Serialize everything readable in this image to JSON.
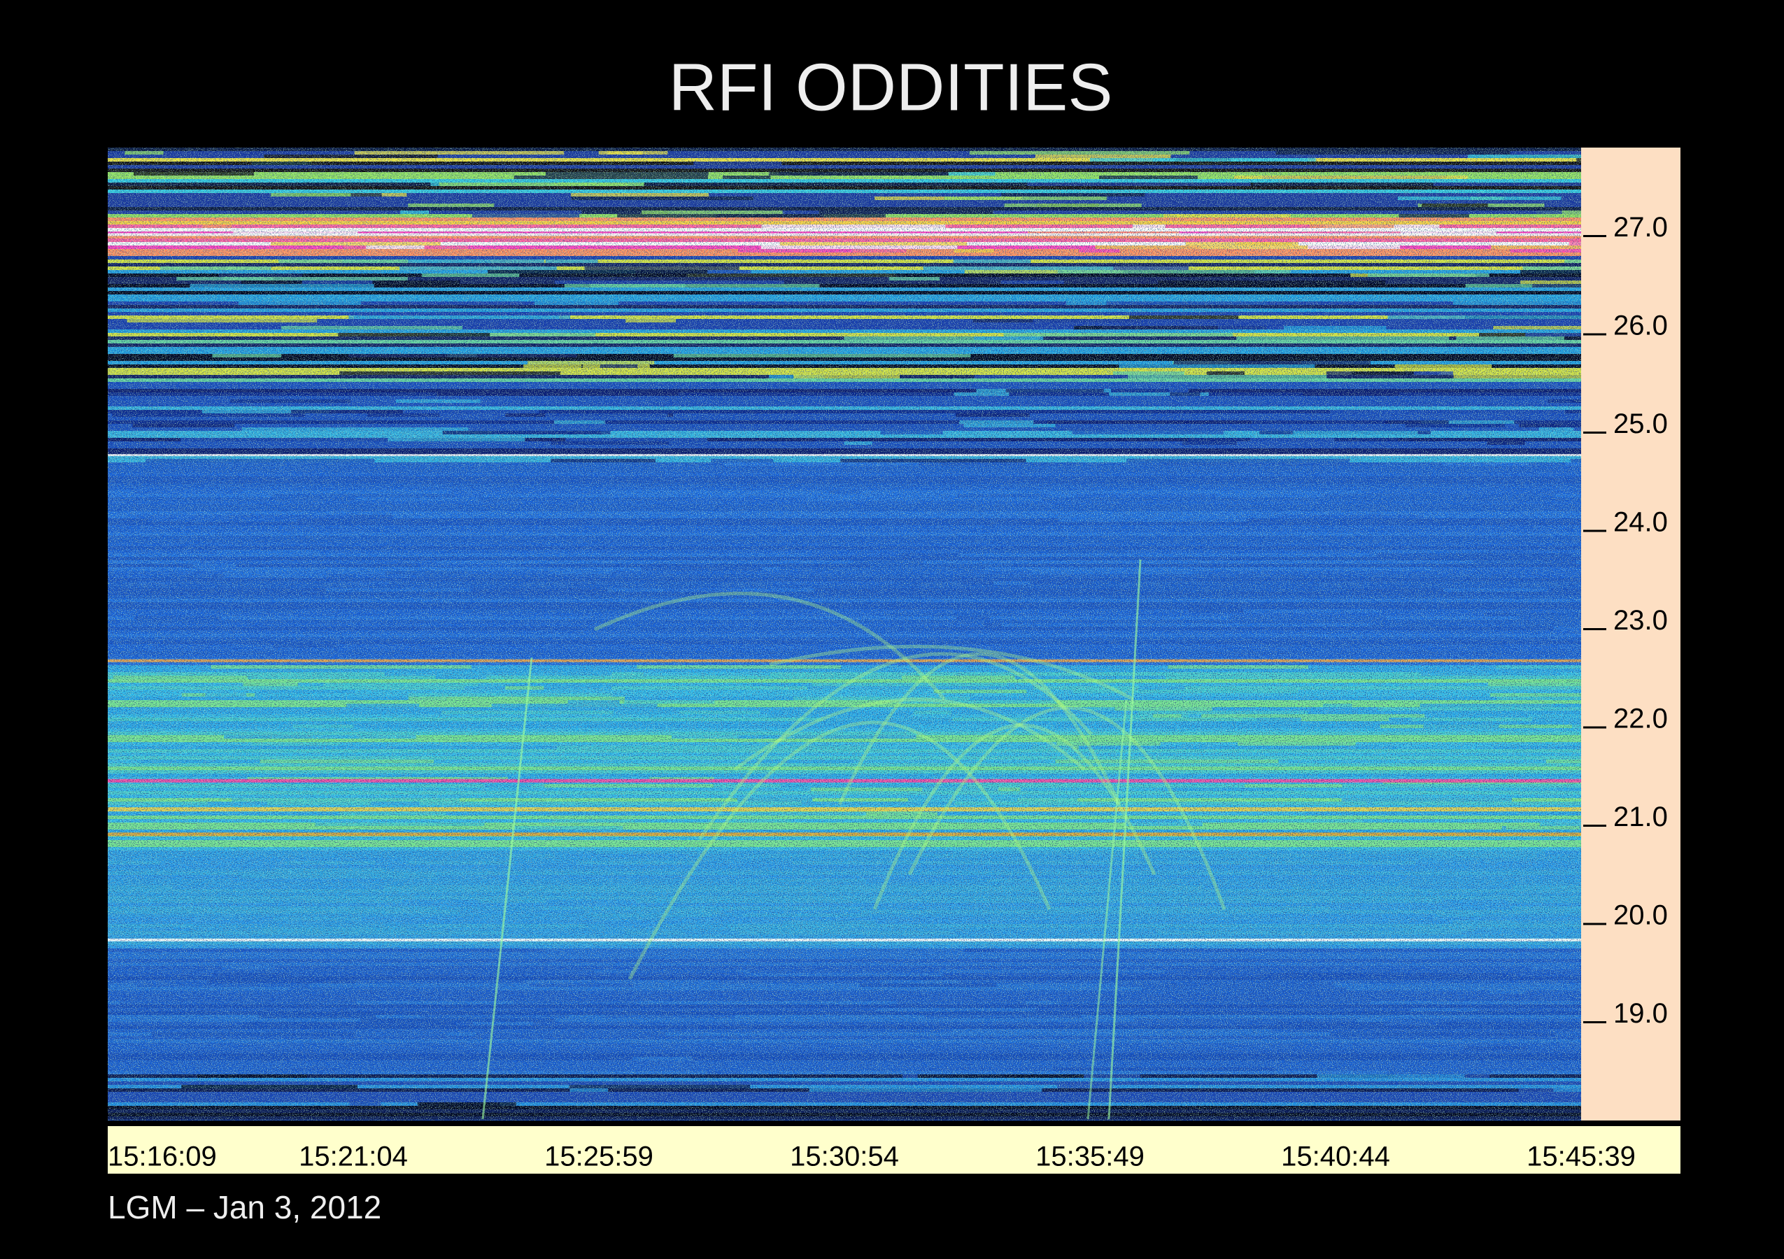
{
  "chart_data": {
    "type": "spectrogram",
    "title": "RFI ODDITIES",
    "footnote": "LGM – Jan 3, 2012",
    "xlim": [
      "15:16:09",
      "15:45:39"
    ],
    "xticks": [
      "15:16:09",
      "15:21:04",
      "15:25:59",
      "15:30:54",
      "15:35:49",
      "15:40:44",
      "15:45:39"
    ],
    "ylim": [
      18.0,
      27.9
    ],
    "yticks": [
      {
        "value": 19,
        "label": "19.0"
      },
      {
        "value": 20,
        "label": "20.0"
      },
      {
        "value": 21,
        "label": "21.0"
      },
      {
        "value": 22,
        "label": "22.0"
      },
      {
        "value": 23,
        "label": "23.0"
      },
      {
        "value": 24,
        "label": "24.0"
      },
      {
        "value": 25,
        "label": "25.0"
      },
      {
        "value": 26,
        "label": "26.0"
      },
      {
        "value": 27,
        "label": "27.0"
      }
    ]
  }
}
